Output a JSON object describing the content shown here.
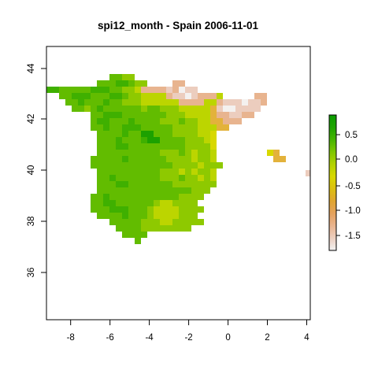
{
  "title": "spi12_month - Spain 2006-11-01",
  "x_axis": {
    "range": [
      -9.2,
      4.2
    ],
    "ticks": [
      -8,
      -6,
      -4,
      -2,
      0,
      2,
      4
    ],
    "tick_labels": [
      "-8",
      "-6",
      "-4",
      "-2",
      "0",
      "2",
      "4"
    ]
  },
  "y_axis": {
    "range": [
      34.0,
      45.0
    ],
    "ticks": [
      36,
      38,
      40,
      42,
      44
    ],
    "tick_labels": [
      "36",
      "38",
      "40",
      "42",
      "44"
    ]
  },
  "legend": {
    "placement": "right",
    "range": [
      -1.9,
      0.9
    ],
    "ticks": [
      0.5,
      0.0,
      -0.5,
      -1.0,
      -1.5
    ],
    "tick_labels": [
      "0.5",
      "0.0",
      "-0.5",
      "-1.0",
      "-1.5"
    ],
    "palette": [
      "#f2f2f2",
      "#eccfc0",
      "#e9b48f",
      "#e4a15d",
      "#e0a530",
      "#dcbf11",
      "#d8d800",
      "#b2d200",
      "#7fc700",
      "#46b500",
      "#1ea400",
      "#0a9c00"
    ]
  },
  "map_data": {
    "type": "raster",
    "colors": {
      "green_dark": "#1ca100",
      "green": "#3fb000",
      "green_mid": "#62bc00",
      "green_light": "#8ec900",
      "yellow_green": "#bcd500",
      "yellow": "#d8d800",
      "orange": "#e3b23b",
      "salmon": "#e8b48f",
      "pink": "#eccdbe",
      "white": "#f4f1ef"
    }
  }
}
